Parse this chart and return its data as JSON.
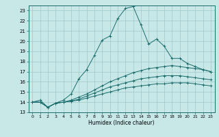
{
  "xlabel": "Humidex (Indice chaleur)",
  "background_color": "#c8e8e8",
  "grid_color": "#a0c8c8",
  "line_color": "#1a6b6b",
  "xlim": [
    -0.5,
    23.5
  ],
  "ylim": [
    13.0,
    23.5
  ],
  "yticks": [
    13,
    14,
    15,
    16,
    17,
    18,
    19,
    20,
    21,
    22,
    23
  ],
  "xticks": [
    0,
    1,
    2,
    3,
    4,
    5,
    6,
    7,
    8,
    9,
    10,
    11,
    12,
    13,
    14,
    15,
    16,
    17,
    18,
    19,
    20,
    21,
    22,
    23
  ],
  "line1_x": [
    0,
    1,
    2,
    3,
    4,
    5,
    6,
    7,
    8,
    9,
    10,
    11,
    12,
    13,
    14,
    15,
    16,
    17,
    18,
    19,
    20,
    21,
    22,
    23
  ],
  "line1_y": [
    14.0,
    14.2,
    13.5,
    13.9,
    14.2,
    14.8,
    16.3,
    17.2,
    18.6,
    20.1,
    20.5,
    22.2,
    23.2,
    23.4,
    21.6,
    19.7,
    20.2,
    19.5,
    18.3,
    18.3,
    17.8,
    17.5,
    17.2,
    17.0
  ],
  "line2_x": [
    0,
    1,
    2,
    3,
    4,
    5,
    6,
    7,
    8,
    9,
    10,
    11,
    12,
    13,
    14,
    15,
    16,
    17,
    18,
    19,
    20,
    21,
    22,
    23
  ],
  "line2_y": [
    14.0,
    14.0,
    13.5,
    13.9,
    14.0,
    14.2,
    14.5,
    14.8,
    15.2,
    15.6,
    16.0,
    16.3,
    16.6,
    16.9,
    17.1,
    17.3,
    17.4,
    17.5,
    17.6,
    17.5,
    17.4,
    17.3,
    17.2,
    17.0
  ],
  "line3_x": [
    0,
    1,
    2,
    3,
    4,
    5,
    6,
    7,
    8,
    9,
    10,
    11,
    12,
    13,
    14,
    15,
    16,
    17,
    18,
    19,
    20,
    21,
    22,
    23
  ],
  "line3_y": [
    14.0,
    14.0,
    13.5,
    13.9,
    14.0,
    14.1,
    14.3,
    14.6,
    14.9,
    15.2,
    15.5,
    15.7,
    15.9,
    16.1,
    16.3,
    16.4,
    16.5,
    16.6,
    16.6,
    16.6,
    16.5,
    16.4,
    16.3,
    16.2
  ],
  "line4_x": [
    0,
    1,
    2,
    3,
    4,
    5,
    6,
    7,
    8,
    9,
    10,
    11,
    12,
    13,
    14,
    15,
    16,
    17,
    18,
    19,
    20,
    21,
    22,
    23
  ],
  "line4_y": [
    14.0,
    14.0,
    13.5,
    13.9,
    14.0,
    14.1,
    14.2,
    14.4,
    14.6,
    14.8,
    15.0,
    15.2,
    15.4,
    15.5,
    15.6,
    15.7,
    15.8,
    15.8,
    15.9,
    15.9,
    15.9,
    15.8,
    15.7,
    15.6
  ]
}
